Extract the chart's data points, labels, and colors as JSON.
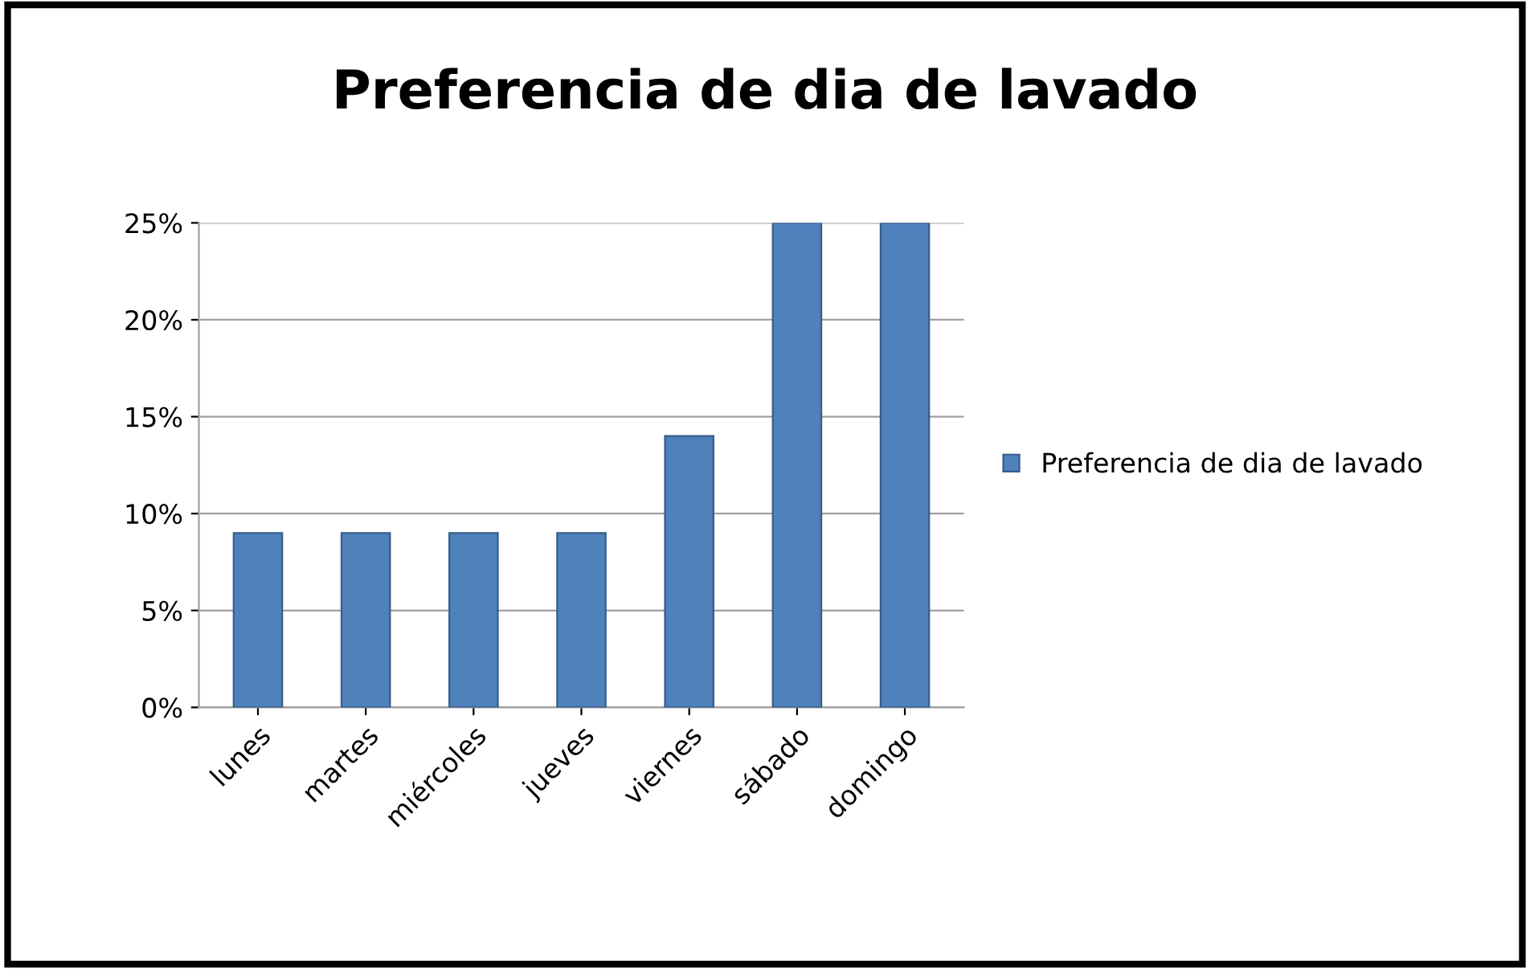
{
  "chart_data": {
    "type": "bar",
    "title": "Preferencia de dia de lavado",
    "categories": [
      "lunes",
      "martes",
      "miércoles",
      "jueves",
      "viernes",
      "sábado",
      "domingo"
    ],
    "series": [
      {
        "name": "Preferencia de dia de lavado",
        "color": "#4f81bd",
        "values": [
          9,
          9,
          9,
          9,
          14,
          25,
          25
        ]
      }
    ],
    "ylim": [
      0,
      25
    ],
    "yticks": [
      {
        "value": 0,
        "label": "0%"
      },
      {
        "value": 5,
        "label": "5%"
      },
      {
        "value": 10,
        "label": "10%"
      },
      {
        "value": 15,
        "label": "15%"
      },
      {
        "value": 20,
        "label": "20%"
      },
      {
        "value": 25,
        "label": "25%"
      }
    ],
    "grid": "y",
    "legend": "right"
  }
}
